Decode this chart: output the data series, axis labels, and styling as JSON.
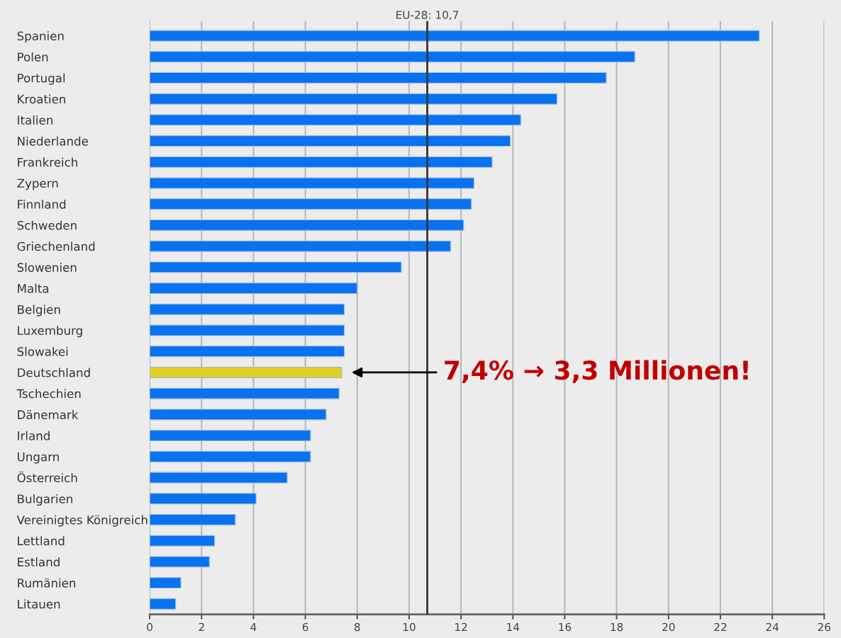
{
  "chart_data": {
    "type": "bar",
    "orientation": "horizontal",
    "categories": [
      "Spanien",
      "Polen",
      "Portugal",
      "Kroatien",
      "Italien",
      "Niederlande",
      "Frankreich",
      "Zypern",
      "Finnland",
      "Schweden",
      "Griechenland",
      "Slowenien",
      "Malta",
      "Belgien",
      "Luxemburg",
      "Slowakei",
      "Deutschland",
      "Tschechien",
      "Dänemark",
      "Irland",
      "Ungarn",
      "Österreich",
      "Bulgarien",
      "Vereinigtes Königreich",
      "Lettland",
      "Estland",
      "Rumänien",
      "Litauen"
    ],
    "values": [
      23.5,
      18.7,
      17.6,
      15.7,
      14.3,
      13.9,
      13.2,
      12.5,
      12.4,
      12.1,
      11.6,
      9.7,
      8.0,
      7.5,
      7.5,
      7.5,
      7.4,
      7.3,
      6.8,
      6.2,
      6.2,
      5.3,
      4.1,
      3.3,
      2.5,
      2.3,
      1.2,
      1.0
    ],
    "colors": [
      "#0872f0",
      "#0872f0",
      "#0872f0",
      "#0872f0",
      "#0872f0",
      "#0872f0",
      "#0872f0",
      "#0872f0",
      "#0872f0",
      "#0872f0",
      "#0872f0",
      "#0872f0",
      "#0872f0",
      "#0872f0",
      "#0872f0",
      "#0872f0",
      "#e2d025",
      "#0872f0",
      "#0872f0",
      "#0872f0",
      "#0872f0",
      "#0872f0",
      "#0872f0",
      "#0872f0",
      "#0872f0",
      "#0872f0",
      "#0872f0",
      "#0872f0"
    ],
    "xlim": [
      0,
      26
    ],
    "xticks": [
      0,
      2,
      4,
      6,
      8,
      10,
      12,
      14,
      16,
      18,
      20,
      22,
      24,
      26
    ],
    "grid": "x",
    "ref_lines": [
      {
        "axis": "x",
        "value": 10.7,
        "label": "EU-28: 10,7",
        "color": "#333333"
      }
    ],
    "annotations": [
      "7,4% → 3,3 Millionen!"
    ]
  }
}
